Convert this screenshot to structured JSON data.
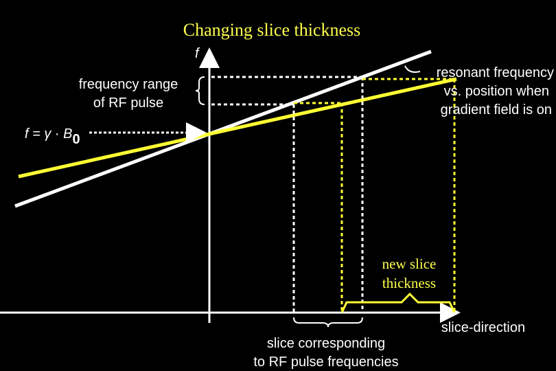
{
  "title": "Changing slice thickness",
  "axis_label": "f",
  "frequency_range": [
    "frequency range",
    "of RF pulse"
  ],
  "equation": {
    "text": "f = γ · B",
    "subscript": "0"
  },
  "resonant_label": [
    "resonant frequency",
    "vs. position when",
    "gradient field is on"
  ],
  "new_slice_label": [
    "new slice",
    "thickness"
  ],
  "x_axis_label": "slice-direction",
  "slice_label": [
    "slice corresponding",
    "to RF pulse frequencies"
  ]
}
